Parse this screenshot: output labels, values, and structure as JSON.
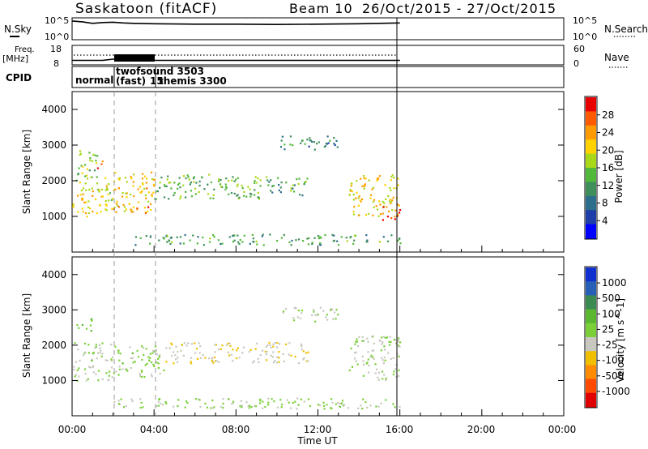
{
  "header": {
    "station": "Saskatoon (fitACF)",
    "beam": "Beam 10",
    "date_range": "26/Oct/2015 - 27/Oct/2015"
  },
  "nsky_panel": {
    "label": "N.Sky",
    "left_ticks": [
      "10^5",
      "10^0"
    ],
    "right_ticks": [
      "10^5",
      "10^0"
    ],
    "right_label": "N.Search"
  },
  "freq_panel": {
    "label_top": "Freq.",
    "label_unit": "[MHz]",
    "left_ticks": [
      "18",
      "8"
    ],
    "right_ticks": [
      "60",
      "0"
    ],
    "right_label": "Nave"
  },
  "cpid_panel": {
    "label": "CPID",
    "modes": [
      "normal",
      "twofsound 3503",
      "(fast)",
      "15",
      "themis 3300"
    ]
  },
  "x_axis": {
    "ticks": [
      "00:00",
      "04:00",
      "08:00",
      "12:00",
      "16:00",
      "20:00",
      "00:00"
    ],
    "label": "Time UT"
  },
  "colors": {
    "power_scale": [
      "#0000ff",
      "#1f3fa8",
      "#2c6e8c",
      "#3f8f5a",
      "#52b83a",
      "#a8d818",
      "#ffd200",
      "#ff9b00",
      "#ff5a00",
      "#e80000"
    ],
    "velocity_scale": [
      "#1030d0",
      "#2860b8",
      "#3a8a52",
      "#5ab830",
      "#7bd03a",
      "#c8c8c0",
      "#f0c000",
      "#ff8c00",
      "#ff4a00",
      "#e00000"
    ],
    "ground_scatter": "#c8c8c0"
  },
  "chart_data": [
    {
      "type": "line",
      "name": "nsky_nsearch",
      "x_unit": "hours UT",
      "xlim": [
        0,
        24
      ],
      "x": [
        0,
        0.5,
        1.0,
        1.5,
        2.0,
        2.5,
        3.0,
        4.0,
        6.0,
        8.0,
        10.0,
        12.0,
        14.0,
        15.0,
        16.0
      ],
      "series": [
        {
          "values": [
            4.6,
            4.4,
            4.0,
            4.2,
            4.3,
            4.1,
            4.0,
            3.9,
            3.8,
            3.8,
            3.7,
            3.8,
            3.9,
            4.0,
            4.1
          ]
        }
      ],
      "ylim": [
        0,
        5
      ]
    },
    {
      "type": "line",
      "name": "frequency_nave",
      "x_unit": "hours UT",
      "xlim": [
        0,
        24
      ],
      "series": [
        {
          "x": [
            0,
            1.5,
            2.0,
            4.0,
            4.01,
            16.0
          ],
          "values": [
            10.5,
            10.5,
            11.2,
            11.2,
            10.5,
            10.5
          ]
        }
      ],
      "ylim": [
        8,
        18
      ]
    },
    {
      "type": "heatmap",
      "name": "power",
      "x_unit": "hours UT",
      "xlim": [
        0,
        24
      ],
      "ylim": [
        0,
        4500
      ],
      "yticks": [
        1000,
        2000,
        3000,
        4000
      ],
      "ylabel": "Slant Range [km]",
      "colorbar_label": "Power [dB]",
      "colorbar_ticks": [
        4,
        8,
        12,
        16,
        20,
        24,
        28
      ],
      "regions": [
        {
          "t0": 0.0,
          "t1": 2.0,
          "r0": 1000,
          "r1": 2100,
          "level": 20
        },
        {
          "t0": 0.0,
          "t1": 1.2,
          "r0": 2100,
          "r1": 2900,
          "level": 16
        },
        {
          "t0": 1.2,
          "t1": 1.6,
          "r0": 2300,
          "r1": 2600,
          "level": 28
        },
        {
          "t0": 2.0,
          "t1": 4.0,
          "r0": 1100,
          "r1": 2300,
          "level": 22
        },
        {
          "t0": 2.8,
          "t1": 3.7,
          "r0": 1100,
          "r1": 1400,
          "level": 28
        },
        {
          "t0": 4.0,
          "t1": 9.5,
          "r0": 1500,
          "r1": 2200,
          "level": 14
        },
        {
          "t0": 9.5,
          "t1": 11.5,
          "r0": 1600,
          "r1": 2100,
          "level": 12
        },
        {
          "t0": 10.0,
          "t1": 13.0,
          "r0": 2900,
          "r1": 3300,
          "level": 10
        },
        {
          "t0": 13.5,
          "t1": 16.0,
          "r0": 1000,
          "r1": 2200,
          "level": 22
        },
        {
          "t0": 15.0,
          "t1": 16.0,
          "r0": 900,
          "r1": 1300,
          "level": 28
        },
        {
          "t0": 3.0,
          "t1": 16.0,
          "r0": 200,
          "r1": 500,
          "level": 12
        }
      ]
    },
    {
      "type": "heatmap",
      "name": "velocity",
      "x_unit": "hours UT",
      "xlim": [
        0,
        24
      ],
      "ylim": [
        0,
        4500
      ],
      "yticks": [
        1000,
        2000,
        3000,
        4000
      ],
      "ylabel": "Slant Range [km]",
      "colorbar_label": "Velocity [m s^-1]",
      "colorbar_ticks": [
        1000,
        500,
        100,
        25,
        -25,
        -100,
        -500,
        -1000
      ],
      "regions": [
        {
          "t0": 0.0,
          "t1": 2.0,
          "r0": 1000,
          "r1": 2100,
          "level": 0
        },
        {
          "t0": 0.2,
          "t1": 1.0,
          "r0": 2400,
          "r1": 2800,
          "level": 150
        },
        {
          "t0": 2.0,
          "t1": 4.5,
          "r0": 1100,
          "r1": 2000,
          "level": 100
        },
        {
          "t0": 4.5,
          "t1": 11.5,
          "r0": 1500,
          "r1": 2100,
          "level": -200
        },
        {
          "t0": 10.0,
          "t1": 13.0,
          "r0": 2700,
          "r1": 3100,
          "level": 0
        },
        {
          "t0": 13.5,
          "t1": 16.0,
          "r0": 1000,
          "r1": 2300,
          "level": 0
        },
        {
          "t0": 2.0,
          "t1": 16.0,
          "r0": 200,
          "r1": 500,
          "level": 60
        }
      ]
    }
  ]
}
